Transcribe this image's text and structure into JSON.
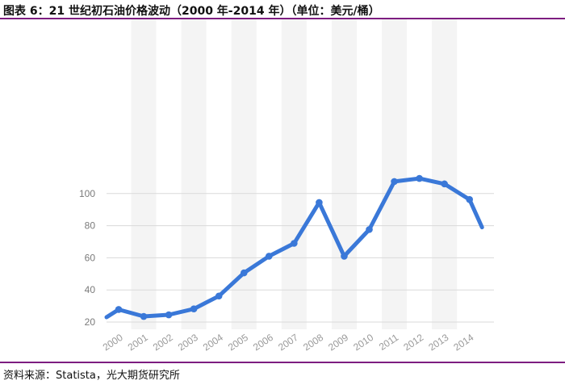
{
  "figure": {
    "title": "图表 6：21 世纪初石油价格波动（2000 年-2014 年）（单位：美元/桶）",
    "source": "资料来源：Statista，光大期货研究所"
  },
  "colors": {
    "line": "#3a78d8",
    "rule": "#7d1d80",
    "band": "#f4f4f4",
    "grid": "#dadada"
  },
  "chart_data": {
    "type": "line",
    "title": "",
    "xlabel": "",
    "ylabel": "",
    "x": [
      1999.5,
      2000,
      2001,
      2002,
      2003,
      2004,
      2005,
      2006,
      2007,
      2008,
      2009,
      2010,
      2011,
      2012,
      2013,
      2014,
      2014.5
    ],
    "y": [
      23,
      27.8,
      23.5,
      24.5,
      28.2,
      36.2,
      50.6,
      61,
      69,
      94.4,
      61,
      77.6,
      107.5,
      109.4,
      106,
      96.3,
      79
    ],
    "categories": [
      "2000",
      "2001",
      "2002",
      "2003",
      "2004",
      "2005",
      "2006",
      "2007",
      "2008",
      "2009",
      "2010",
      "2011",
      "2012",
      "2013",
      "2014"
    ],
    "yticks": [
      20,
      40,
      60,
      80,
      100
    ],
    "ylim": [
      20,
      113
    ],
    "grid": true,
    "legend": "none"
  }
}
